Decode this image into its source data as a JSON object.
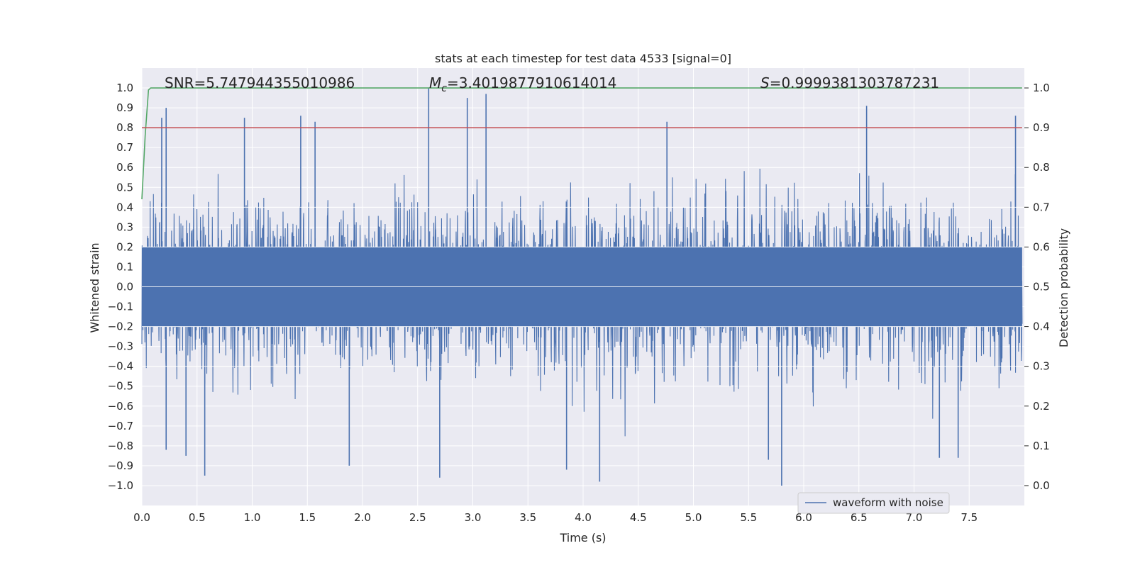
{
  "chart_data": {
    "type": "line",
    "title": "stats at each timestep for test data 4533 [signal=0]",
    "xlabel": "Time (s)",
    "ylabel_left": "Whitened strain",
    "ylabel_right": "Detection probability",
    "xlim": [
      0.0,
      8.0
    ],
    "ylim_left": [
      -1.1,
      1.1
    ],
    "ylim_right": [
      -0.05,
      1.05
    ],
    "x_ticks": [
      "0.0",
      "0.5",
      "1.0",
      "1.5",
      "2.0",
      "2.5",
      "3.0",
      "3.5",
      "4.0",
      "4.5",
      "5.0",
      "5.5",
      "6.0",
      "6.5",
      "7.0",
      "7.5"
    ],
    "y_ticks_left": [
      "1.0",
      "0.9",
      "0.8",
      "0.7",
      "0.6",
      "0.5",
      "0.4",
      "0.3",
      "0.2",
      "0.1",
      "0.0",
      "−0.1",
      "−0.2",
      "−0.3",
      "−0.4",
      "−0.5",
      "−0.6",
      "−0.7",
      "−0.8",
      "−0.9",
      "−1.0"
    ],
    "y_ticks_right": [
      "1.0",
      "0.9",
      "0.8",
      "0.7",
      "0.6",
      "0.5",
      "0.4",
      "0.3",
      "0.2",
      "0.1",
      "0.0"
    ],
    "grid": true,
    "legend_position": "lower-right",
    "annotations": {
      "snr": "SNR=5.747944355010986",
      "mc_symbol": "M",
      "mc_sub": "c",
      "mc_value": "=3.4019877910614014",
      "s_symbol": "S",
      "s_value": "=0.9999381303787231"
    },
    "series": [
      {
        "name": "waveform with noise",
        "axis": "left",
        "color": "#4c72b0",
        "description_stats": {
          "max": 1.0,
          "min": -1.0,
          "typical_envelope_upper": 0.5,
          "typical_envelope_lower": -0.5,
          "duration_s": 7.98
        },
        "upper_spikes": [
          [
            0.18,
            0.85
          ],
          [
            0.22,
            0.9
          ],
          [
            0.93,
            0.85
          ],
          [
            1.44,
            0.86
          ],
          [
            1.57,
            0.83
          ],
          [
            2.6,
            1.0
          ],
          [
            2.95,
            0.95
          ],
          [
            3.12,
            0.97
          ],
          [
            4.76,
            0.83
          ],
          [
            6.57,
            0.91
          ],
          [
            7.92,
            0.86
          ]
        ],
        "lower_spikes": [
          [
            0.57,
            -0.95
          ],
          [
            0.4,
            -0.85
          ],
          [
            0.22,
            -0.82
          ],
          [
            1.88,
            -0.9
          ],
          [
            2.7,
            -0.96
          ],
          [
            3.85,
            -0.92
          ],
          [
            4.15,
            -0.98
          ],
          [
            5.8,
            -1.0
          ],
          [
            5.68,
            -0.87
          ],
          [
            7.23,
            -0.86
          ],
          [
            7.4,
            -0.86
          ]
        ]
      },
      {
        "name": "",
        "axis": "right",
        "color": "#55a868",
        "x": [
          0.0,
          0.03,
          0.06,
          0.08,
          0.1,
          7.98
        ],
        "values": [
          0.72,
          0.88,
          0.995,
          1.0,
          1.0,
          1.0
        ]
      },
      {
        "name": "",
        "axis": "right",
        "color": "#c44e52",
        "x": [
          0.0,
          7.98
        ],
        "values": [
          0.9,
          0.9
        ]
      }
    ]
  }
}
